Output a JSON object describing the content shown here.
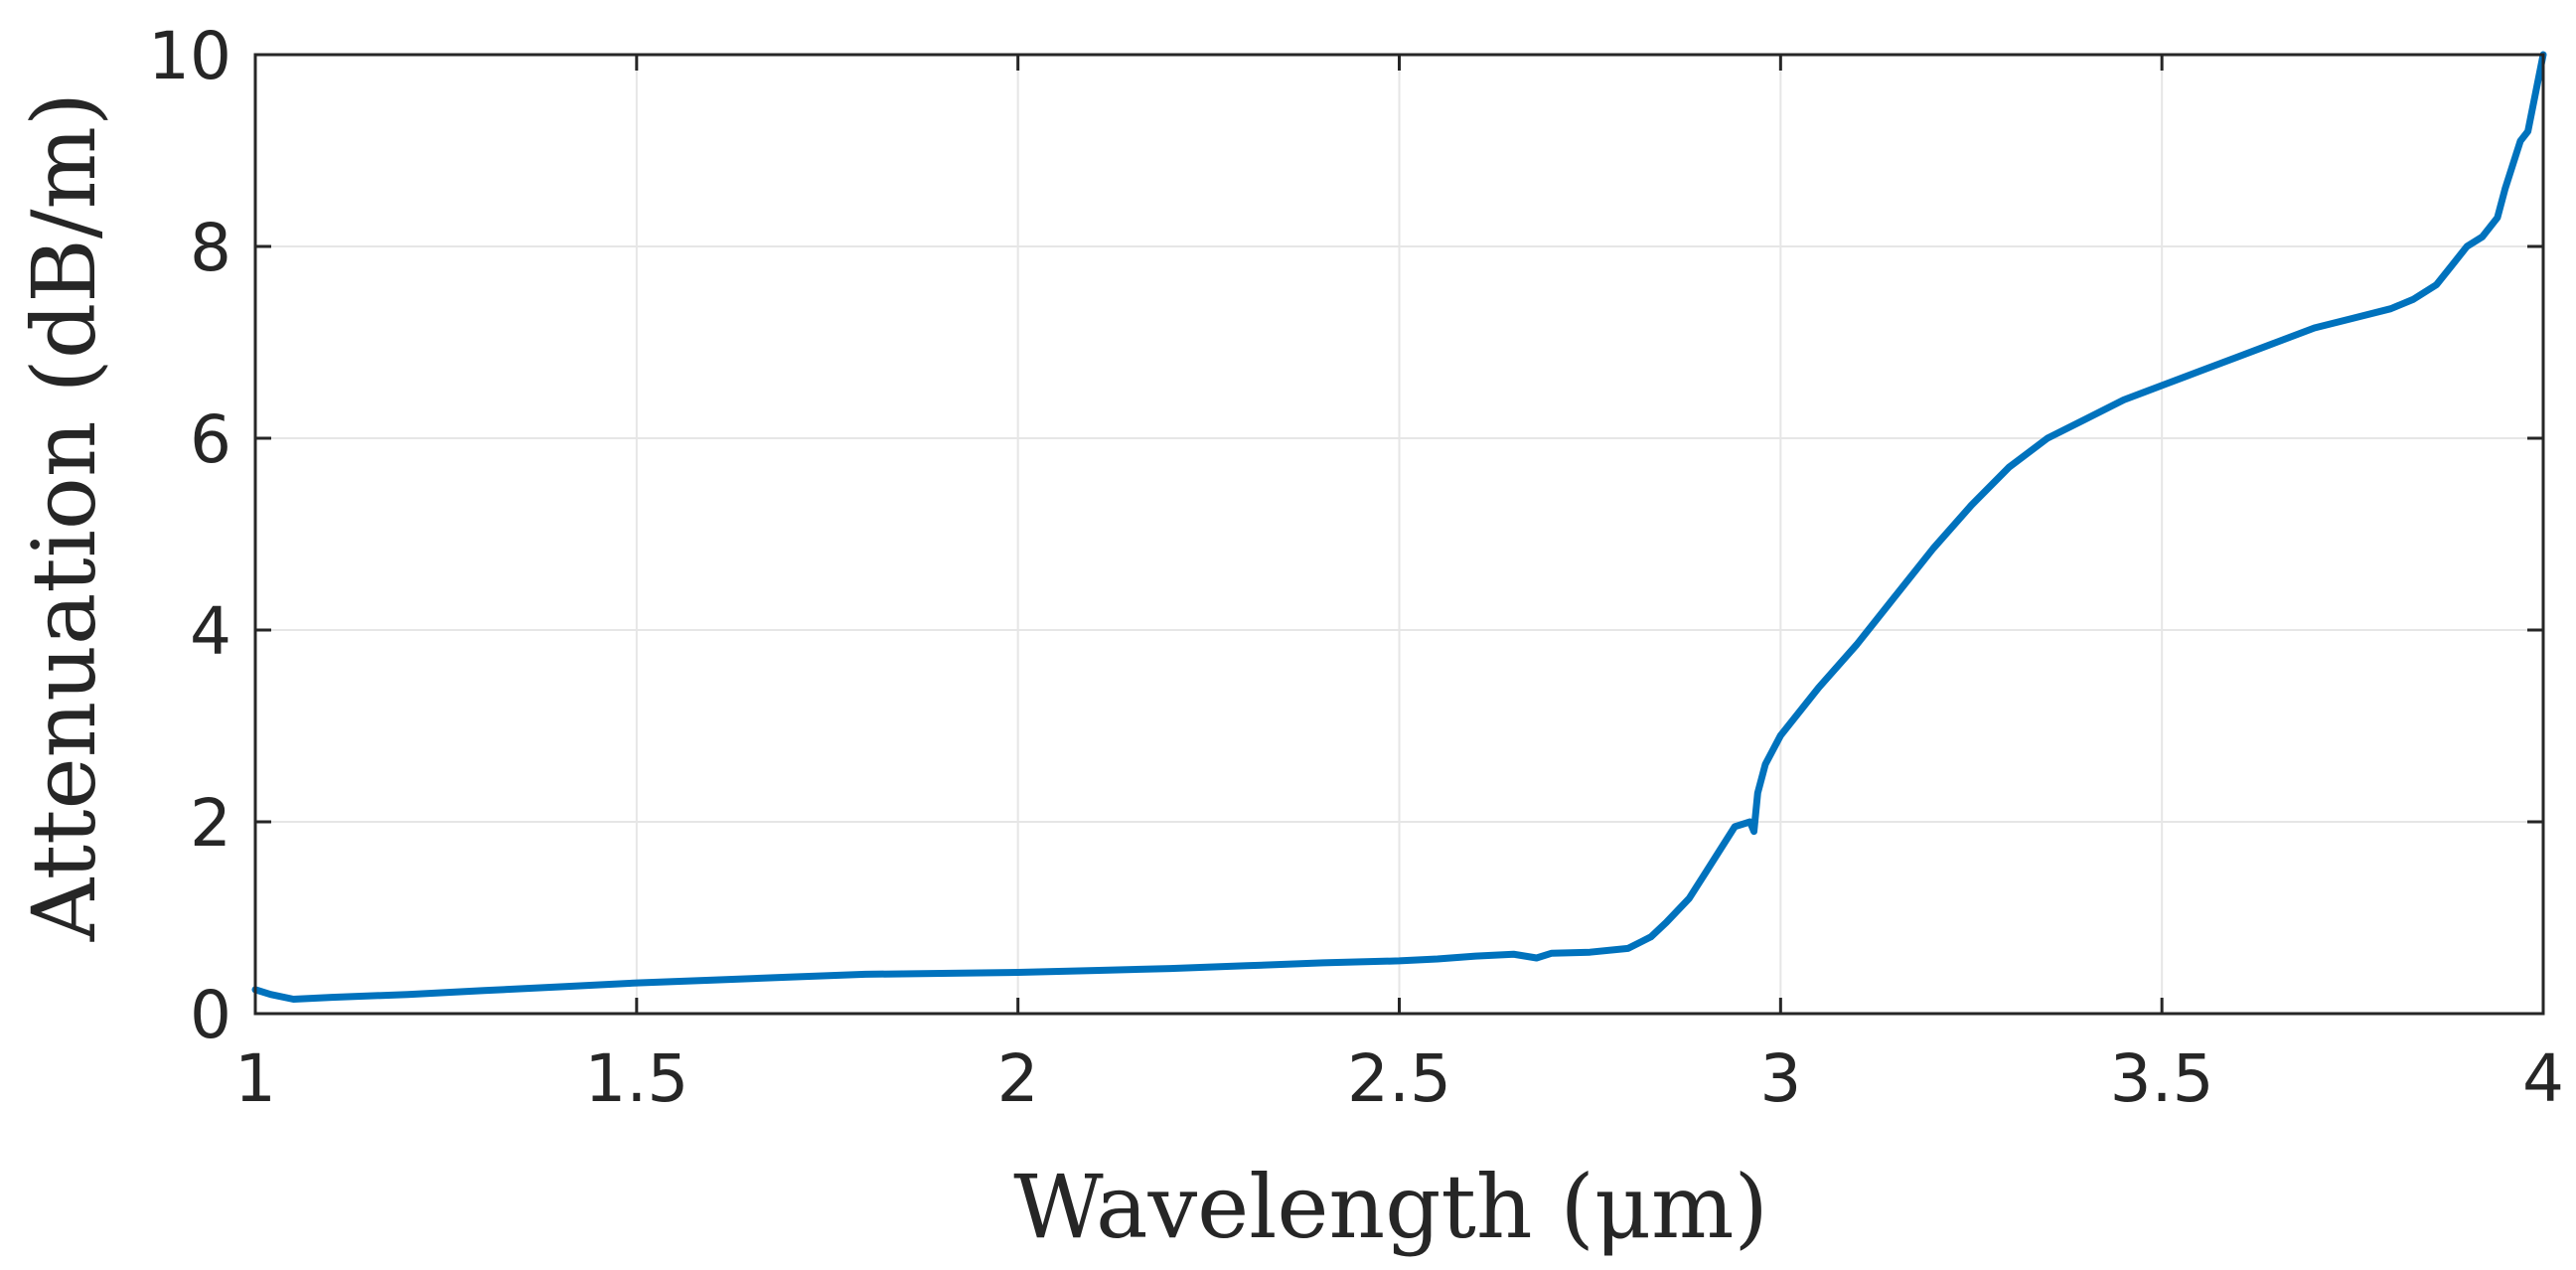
{
  "chart_data": {
    "type": "line",
    "title": "",
    "xlabel": "Wavelength (μm)",
    "ylabel": "Attenuation (dB/m)",
    "xlim": [
      1,
      4
    ],
    "ylim": [
      0,
      10
    ],
    "xticks": [
      1,
      1.5,
      2,
      2.5,
      3,
      3.5,
      4
    ],
    "xtick_labels": [
      "1",
      "1.5",
      "2",
      "2.5",
      "3",
      "3.5",
      "4"
    ],
    "yticks": [
      0,
      2,
      4,
      6,
      8,
      10
    ],
    "ytick_labels": [
      "0",
      "2",
      "4",
      "6",
      "8",
      "10"
    ],
    "grid": true,
    "line_color": "#0072BD",
    "axis_color": "#262626",
    "grid_color": "#e6e6e6",
    "series": [
      {
        "name": "Attenuation",
        "x": [
          1.0,
          1.02,
          1.05,
          1.1,
          1.2,
          1.3,
          1.4,
          1.5,
          1.6,
          1.7,
          1.8,
          1.9,
          2.0,
          2.1,
          2.2,
          2.3,
          2.4,
          2.5,
          2.55,
          2.6,
          2.65,
          2.68,
          2.7,
          2.75,
          2.8,
          2.83,
          2.85,
          2.88,
          2.9,
          2.92,
          2.94,
          2.96,
          2.965,
          2.97,
          2.98,
          3.0,
          3.05,
          3.1,
          3.15,
          3.2,
          3.25,
          3.3,
          3.35,
          3.4,
          3.45,
          3.5,
          3.55,
          3.6,
          3.65,
          3.7,
          3.75,
          3.8,
          3.83,
          3.86,
          3.88,
          3.9,
          3.92,
          3.94,
          3.95,
          3.97,
          3.98,
          4.0
        ],
        "y": [
          0.25,
          0.2,
          0.15,
          0.17,
          0.2,
          0.24,
          0.28,
          0.32,
          0.35,
          0.38,
          0.41,
          0.42,
          0.43,
          0.45,
          0.47,
          0.5,
          0.53,
          0.55,
          0.57,
          0.6,
          0.62,
          0.58,
          0.63,
          0.64,
          0.68,
          0.8,
          0.95,
          1.2,
          1.45,
          1.7,
          1.95,
          2.0,
          1.9,
          2.3,
          2.6,
          2.9,
          3.4,
          3.85,
          4.35,
          4.85,
          5.3,
          5.7,
          6.0,
          6.2,
          6.4,
          6.55,
          6.7,
          6.85,
          7.0,
          7.15,
          7.25,
          7.35,
          7.45,
          7.6,
          7.8,
          8.0,
          8.1,
          8.3,
          8.6,
          9.1,
          9.2,
          10.0
        ]
      }
    ]
  }
}
